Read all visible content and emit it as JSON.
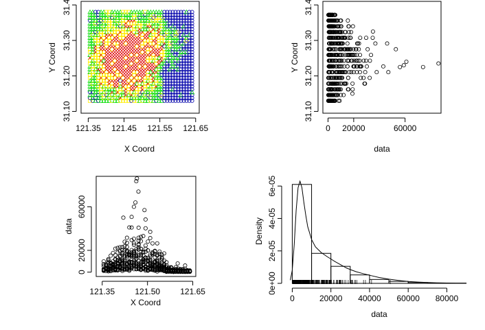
{
  "chart_data": [
    {
      "type": "scatter",
      "xlabel": "X Coord",
      "ylabel": "Y Coord",
      "xlim": [
        121.33,
        121.66
      ],
      "ylim": [
        31.095,
        31.41
      ],
      "xticks": [
        "121.35",
        "121.45",
        "121.55",
        "121.65"
      ],
      "xtick_values": [
        121.35,
        121.45,
        121.55,
        121.65
      ],
      "yticks": [
        "31.10",
        "31.20",
        "31.30",
        "31.40"
      ],
      "ytick_values": [
        31.1,
        31.2,
        31.3,
        31.4
      ],
      "grid": false,
      "quantile_colors": [
        "#0000aa",
        "#00dd00",
        "#ffee00",
        "#dd0000"
      ],
      "marker_shapes": [
        "circle",
        "triangle",
        "square",
        "cross"
      ],
      "grid_x_range": [
        121.355,
        121.64
      ],
      "grid_y_range": [
        31.13,
        31.38
      ]
    },
    {
      "type": "scatter",
      "xlabel": "data",
      "ylabel": "Y Coord",
      "xlim": [
        -4000,
        88000
      ],
      "ylim": [
        31.095,
        31.41
      ],
      "xticks": [
        "0",
        "20000",
        "60000"
      ],
      "xtick_values": [
        0,
        20000,
        60000
      ],
      "yticks": [
        "31.10",
        "31.20",
        "31.30",
        "31.40"
      ],
      "ytick_values": [
        31.1,
        31.2,
        31.3,
        31.4
      ],
      "grid": false,
      "notable_points": [
        {
          "x": 86000,
          "y": 31.235
        },
        {
          "x": 74000,
          "y": 31.225
        },
        {
          "x": 61000,
          "y": 31.24
        },
        {
          "x": 59000,
          "y": 31.23
        },
        {
          "x": 56000,
          "y": 31.225
        },
        {
          "x": 35000,
          "y": 31.325
        },
        {
          "x": 19000,
          "y": 31.15
        }
      ]
    },
    {
      "type": "scatter",
      "xlabel": "X Coord",
      "ylabel": "data",
      "xlim": [
        121.33,
        121.66
      ],
      "ylim": [
        -4000,
        88000
      ],
      "xticks": [
        "121.35",
        "121.50",
        "121.65"
      ],
      "xtick_values": [
        121.35,
        121.5,
        121.65
      ],
      "yticks": [
        "0",
        "20000",
        "60000"
      ],
      "ytick_values": [
        0,
        20000,
        60000
      ],
      "grid": false,
      "notable_points": [
        {
          "x": 121.465,
          "y": 86000
        },
        {
          "x": 121.47,
          "y": 74000
        },
        {
          "x": 121.46,
          "y": 64000
        },
        {
          "x": 121.455,
          "y": 60000
        },
        {
          "x": 121.49,
          "y": 57000
        },
        {
          "x": 121.42,
          "y": 50000
        },
        {
          "x": 121.6,
          "y": 8000
        }
      ]
    },
    {
      "type": "bar",
      "subtype": "histogram",
      "xlabel": "data",
      "ylabel": "Density",
      "xlim": [
        -3000,
        93000
      ],
      "ylim": [
        0,
        6.6e-05
      ],
      "xticks": [
        "0",
        "20000",
        "40000",
        "60000",
        "80000"
      ],
      "xtick_values": [
        0,
        20000,
        40000,
        60000,
        80000
      ],
      "yticks": [
        "0e+00",
        "2e-05",
        "4e-05",
        "6e-05"
      ],
      "ytick_values": [
        0,
        2e-05,
        4e-05,
        6e-05
      ],
      "grid": false,
      "bin_edges": [
        0,
        10000,
        20000,
        30000,
        40000,
        50000,
        60000,
        70000,
        80000,
        90000
      ],
      "densities": [
        6.1e-05,
        1.85e-05,
        1.05e-05,
        5.2e-06,
        2.4e-06,
        1.2e-06,
        5e-07,
        2e-07,
        1.2e-07
      ],
      "density_curve": {
        "x": [
          -1000,
          0,
          1000,
          2000,
          3000,
          4000,
          5000,
          6000,
          7000,
          8000,
          10000,
          12000,
          15000,
          18000,
          20000,
          22000,
          25000,
          28000,
          30000,
          33000,
          36000,
          40000,
          45000,
          50000,
          55000,
          60000,
          65000,
          70000,
          75000,
          80000,
          85000,
          90000
        ],
        "y": [
          2e-06,
          8e-06,
          2.4e-05,
          4.5e-05,
          5.9e-05,
          6.3e-05,
          5.9e-05,
          5e-05,
          4.2e-05,
          3.5e-05,
          2.7e-05,
          2.25e-05,
          1.9e-05,
          1.65e-05,
          1.5e-05,
          1.35e-05,
          1.15e-05,
          9.5e-06,
          8.5e-06,
          7.2e-06,
          6.2e-06,
          5e-06,
          3.6e-06,
          2.6e-06,
          1.8e-06,
          1.2e-06,
          8e-07,
          5e-07,
          3e-07,
          2e-07,
          1.2e-07,
          8e-08
        ]
      },
      "rug": true
    }
  ]
}
